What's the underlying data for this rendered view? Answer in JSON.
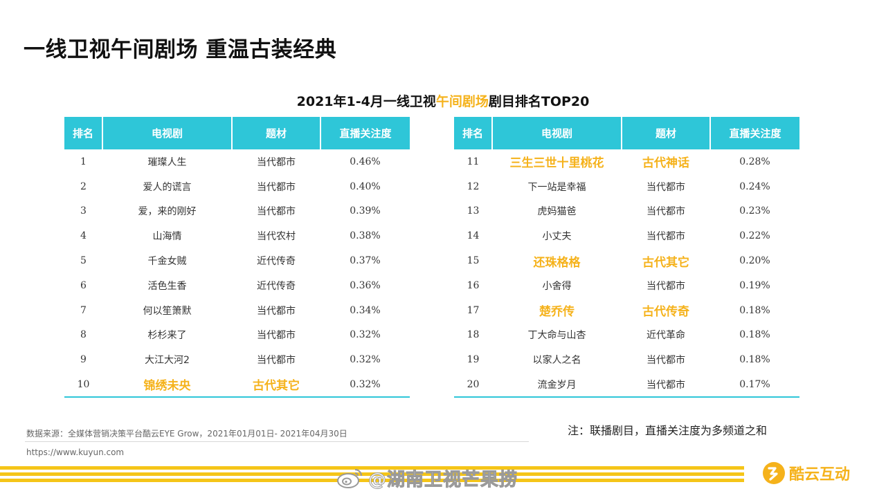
{
  "page": {
    "title": "一线卫视午间剧场 重温古装经典"
  },
  "subtitle": {
    "before": "2021年1-4月一线卫视",
    "highlight": "午间剧场",
    "after": "剧目排名TOP20"
  },
  "colors": {
    "header_bg": "#2ec6d8",
    "highlight": "#f5b21b",
    "stripe": "#f5c518"
  },
  "table": {
    "headers": [
      "排名",
      "电视剧",
      "题材",
      "直播关注度"
    ],
    "left_rows": [
      {
        "rank": "1",
        "drama": "璀璨人生",
        "genre": "当代都市",
        "attention": "0.46%",
        "highlight": false
      },
      {
        "rank": "2",
        "drama": "爱人的谎言",
        "genre": "当代都市",
        "attention": "0.40%",
        "highlight": false
      },
      {
        "rank": "3",
        "drama": "爱，来的刚好",
        "genre": "当代都市",
        "attention": "0.39%",
        "highlight": false
      },
      {
        "rank": "4",
        "drama": "山海情",
        "genre": "当代农村",
        "attention": "0.38%",
        "highlight": false
      },
      {
        "rank": "5",
        "drama": "千金女贼",
        "genre": "近代传奇",
        "attention": "0.37%",
        "highlight": false
      },
      {
        "rank": "6",
        "drama": "活色生香",
        "genre": "近代传奇",
        "attention": "0.36%",
        "highlight": false
      },
      {
        "rank": "7",
        "drama": "何以笙箫默",
        "genre": "当代都市",
        "attention": "0.34%",
        "highlight": false
      },
      {
        "rank": "8",
        "drama": "杉杉来了",
        "genre": "当代都市",
        "attention": "0.32%",
        "highlight": false
      },
      {
        "rank": "9",
        "drama": "大江大河2",
        "genre": "当代都市",
        "attention": "0.32%",
        "highlight": false
      },
      {
        "rank": "10",
        "drama": "锦绣未央",
        "genre": "古代其它",
        "attention": "0.32%",
        "highlight": true
      }
    ],
    "right_rows": [
      {
        "rank": "11",
        "drama": "三生三世十里桃花",
        "genre": "古代神话",
        "attention": "0.28%",
        "highlight": true
      },
      {
        "rank": "12",
        "drama": "下一站是幸福",
        "genre": "当代都市",
        "attention": "0.24%",
        "highlight": false
      },
      {
        "rank": "13",
        "drama": "虎妈猫爸",
        "genre": "当代都市",
        "attention": "0.23%",
        "highlight": false
      },
      {
        "rank": "14",
        "drama": "小丈夫",
        "genre": "当代都市",
        "attention": "0.22%",
        "highlight": false
      },
      {
        "rank": "15",
        "drama": "还珠格格",
        "genre": "古代其它",
        "attention": "0.20%",
        "highlight": true
      },
      {
        "rank": "16",
        "drama": "小舍得",
        "genre": "当代都市",
        "attention": "0.19%",
        "highlight": false
      },
      {
        "rank": "17",
        "drama": "楚乔传",
        "genre": "古代传奇",
        "attention": "0.18%",
        "highlight": true
      },
      {
        "rank": "18",
        "drama": "丁大命与山杏",
        "genre": "近代革命",
        "attention": "0.18%",
        "highlight": false
      },
      {
        "rank": "19",
        "drama": "以家人之名",
        "genre": "当代都市",
        "attention": "0.18%",
        "highlight": false
      },
      {
        "rank": "20",
        "drama": "流金岁月",
        "genre": "当代都市",
        "attention": "0.17%",
        "highlight": false
      }
    ]
  },
  "note": "注：联播剧目，直播关注度为多频道之和",
  "source": "数据来源：全媒体营销决策平台酷云EYE  Grow，2021年01月01日- 2021年04月30日",
  "url": "https://www.kuyun.com",
  "watermark": {
    "icon": "weibo-icon",
    "text": "@湖南卫视芒果捞"
  },
  "brand": {
    "icon": "kuyun-logo-icon",
    "name": "酷云互动"
  }
}
